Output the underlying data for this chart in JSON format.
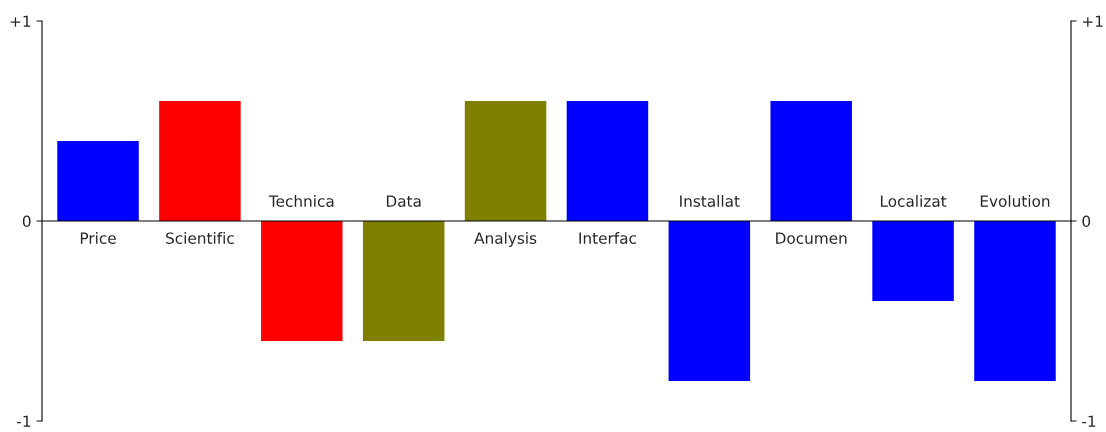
{
  "chart_data": {
    "type": "bar",
    "categories": [
      "Price",
      "Scientific",
      "Technica",
      "Data",
      "Analysis",
      "Interfac",
      "Installat",
      "Documen",
      "Localizat",
      "Evolution"
    ],
    "values": [
      0.4,
      0.6,
      -0.6,
      -0.6,
      0.6,
      0.6,
      -0.8,
      0.6,
      -0.4,
      -0.8
    ],
    "colors": [
      "#0000ff",
      "#ff0000",
      "#ff0000",
      "#808000",
      "#808000",
      "#0000ff",
      "#0000ff",
      "#0000ff",
      "#0000ff",
      "#0000ff"
    ],
    "ylim": [
      -1,
      1
    ],
    "yticks": [
      {
        "value": 1,
        "label": "+1"
      },
      0,
      -1
    ],
    "y2lim": [
      -1,
      1
    ],
    "y2ticks": [
      {
        "value": 1,
        "label": "+1"
      },
      0,
      -1
    ],
    "grid": false,
    "legend": false
  }
}
